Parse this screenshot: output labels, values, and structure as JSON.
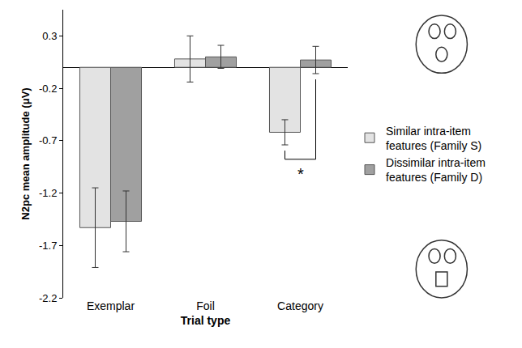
{
  "chart_data": {
    "type": "bar",
    "categories": [
      "Exemplar",
      "Foil",
      "Category"
    ],
    "series": [
      {
        "name": "Similar intra-item features (Family S)",
        "color": "#e3e3e3",
        "values": [
          -1.53,
          0.08,
          -0.62
        ],
        "error": [
          0.38,
          0.22,
          0.12
        ]
      },
      {
        "name": "Dissimilar intra-item features (Family D)",
        "color": "#a0a0a0",
        "values": [
          -1.47,
          0.1,
          0.07
        ],
        "error": [
          0.29,
          0.11,
          0.13
        ]
      }
    ],
    "x_label": "Trial type",
    "y_label": "N2pc mean amplitude (μV)",
    "ylim": [
      -2.2,
      0.55
    ],
    "yticks": [
      -2.2,
      -1.7,
      -1.2,
      -0.7,
      -0.2,
      0.3
    ],
    "grid": false,
    "legend": "right",
    "significance": {
      "category": "Category",
      "text": "*"
    }
  }
}
